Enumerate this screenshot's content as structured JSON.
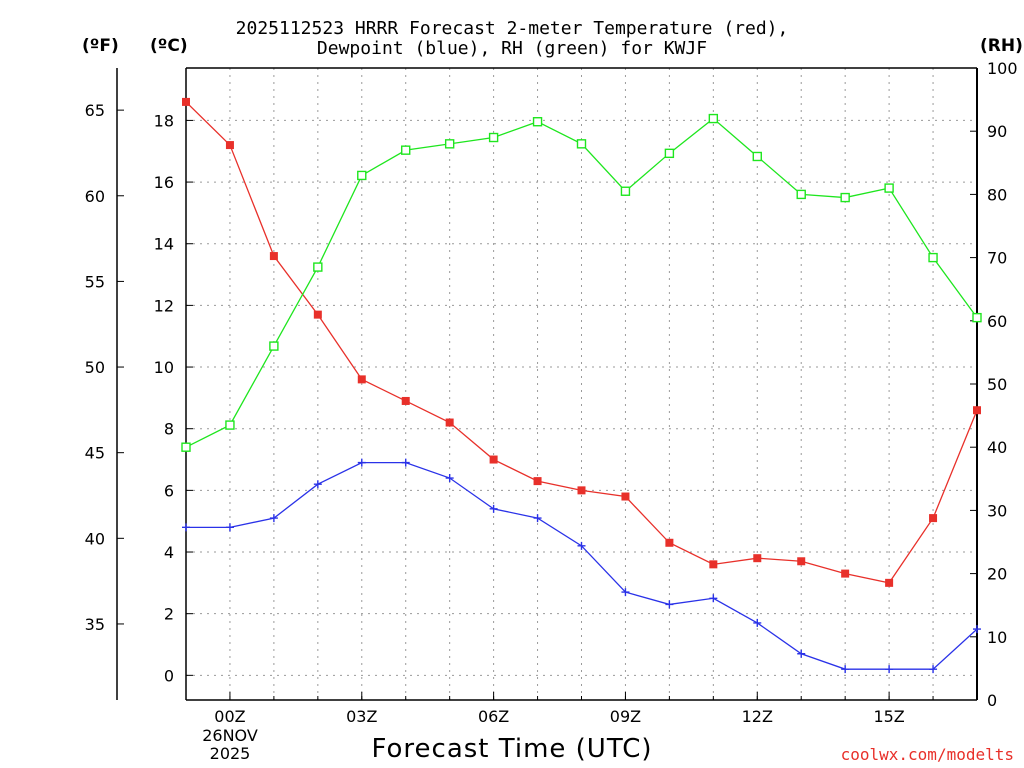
{
  "title_line1": "2025112523 HRRR Forecast 2-meter Temperature (red),",
  "title_line2": "Dewpoint (blue), RH (green) for KWJF",
  "units": {
    "fahrenheit": "(ºF)",
    "celsius": "(ºC)",
    "rh": "(RH)"
  },
  "xlabel": "Forecast Time (UTC)",
  "credit": "coolwx.com/modelts",
  "date_label": {
    "line1": "26NOV",
    "line2": "2025"
  },
  "colors": {
    "temperature": "#e8302a",
    "dewpoint": "#2a32e8",
    "rh": "#1ee61e",
    "grid": "#9a9a9a"
  },
  "chart_data": {
    "type": "line",
    "x": [
      -1,
      0,
      1,
      2,
      3,
      4,
      5,
      6,
      7,
      8,
      9,
      10,
      11,
      12,
      13,
      14,
      15,
      16,
      17
    ],
    "x_tick_positions": [
      0,
      3,
      6,
      9,
      12,
      15
    ],
    "x_tick_labels": [
      "00Z",
      "03Z",
      "06Z",
      "09Z",
      "12Z",
      "15Z"
    ],
    "xlim": [
      -1,
      17
    ],
    "left_axis_celsius": {
      "ylim": [
        -0.8,
        19.7
      ],
      "ticks": [
        0,
        2,
        4,
        6,
        8,
        10,
        12,
        14,
        16,
        18
      ]
    },
    "left_axis_fahrenheit": {
      "ticks": [
        35,
        40,
        45,
        50,
        55,
        60,
        65
      ]
    },
    "right_axis_rh": {
      "ylim": [
        0,
        100
      ],
      "ticks": [
        0,
        10,
        20,
        30,
        40,
        50,
        60,
        70,
        80,
        90,
        100
      ]
    },
    "series": [
      {
        "name": "2-meter Temperature",
        "axis": "celsius",
        "marker": "filled-square",
        "values": [
          18.6,
          17.2,
          13.6,
          11.7,
          9.6,
          8.9,
          8.2,
          7.0,
          6.3,
          6.0,
          5.8,
          4.3,
          3.6,
          3.8,
          3.7,
          3.3,
          3.0,
          5.1,
          8.6
        ]
      },
      {
        "name": "Dewpoint",
        "axis": "celsius",
        "marker": "plus",
        "values": [
          4.8,
          4.8,
          5.1,
          6.2,
          6.9,
          6.9,
          6.4,
          5.4,
          5.1,
          4.2,
          2.7,
          2.3,
          2.5,
          1.7,
          0.7,
          0.2,
          0.2,
          0.2,
          1.5
        ]
      },
      {
        "name": "RH",
        "axis": "rh",
        "marker": "open-square",
        "values": [
          40,
          43.5,
          56,
          68.5,
          83,
          87,
          88,
          89,
          91.5,
          88,
          80.5,
          86.5,
          92,
          86,
          80,
          79.5,
          81,
          70,
          60.5
        ]
      }
    ]
  }
}
